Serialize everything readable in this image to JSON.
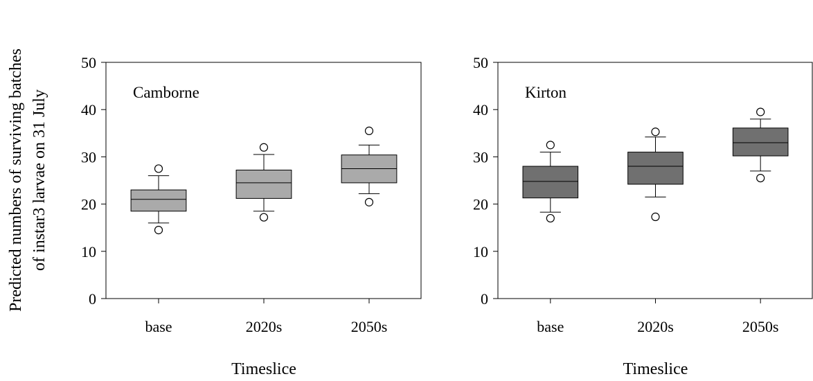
{
  "chart_data": {
    "type": "box",
    "ylabel": "Predicted numbers of surviving batches",
    "ylabel_line2": "of instar3 larvae on 31 July",
    "panels": [
      {
        "label": "Camborne",
        "xlabel": "Timeslice",
        "ylim": [
          0,
          50
        ],
        "yticks": [
          0,
          10,
          20,
          30,
          40,
          50
        ],
        "box_color": "#aaaaaa",
        "categories": [
          "base",
          "2020s",
          "2050s"
        ],
        "boxes": [
          {
            "category": "base",
            "whisker_low": 16,
            "q1": 18.5,
            "median": 21,
            "q3": 23,
            "whisker_high": 26,
            "outliers": [
              14.5,
              27.5
            ]
          },
          {
            "category": "2020s",
            "whisker_low": 18.5,
            "q1": 21.2,
            "median": 24.5,
            "q3": 27.2,
            "whisker_high": 30.5,
            "outliers": [
              17.2,
              32
            ]
          },
          {
            "category": "2050s",
            "whisker_low": 22.2,
            "q1": 24.5,
            "median": 27.5,
            "q3": 30.4,
            "whisker_high": 32.5,
            "outliers": [
              20.4,
              35.5
            ]
          }
        ]
      },
      {
        "label": "Kirton",
        "xlabel": "Timeslice",
        "ylim": [
          0,
          50
        ],
        "yticks": [
          0,
          10,
          20,
          30,
          40,
          50
        ],
        "box_color": "#707070",
        "categories": [
          "base",
          "2020s",
          "2050s"
        ],
        "boxes": [
          {
            "category": "base",
            "whisker_low": 18.3,
            "q1": 21.3,
            "median": 24.8,
            "q3": 28,
            "whisker_high": 31,
            "outliers": [
              17,
              32.5
            ]
          },
          {
            "category": "2020s",
            "whisker_low": 21.5,
            "q1": 24.2,
            "median": 28,
            "q3": 31,
            "whisker_high": 34.2,
            "outliers": [
              17.3,
              35.3
            ]
          },
          {
            "category": "2050s",
            "whisker_low": 27,
            "q1": 30.2,
            "median": 33,
            "q3": 36.1,
            "whisker_high": 38,
            "outliers": [
              25.5,
              39.5
            ]
          }
        ]
      }
    ]
  }
}
